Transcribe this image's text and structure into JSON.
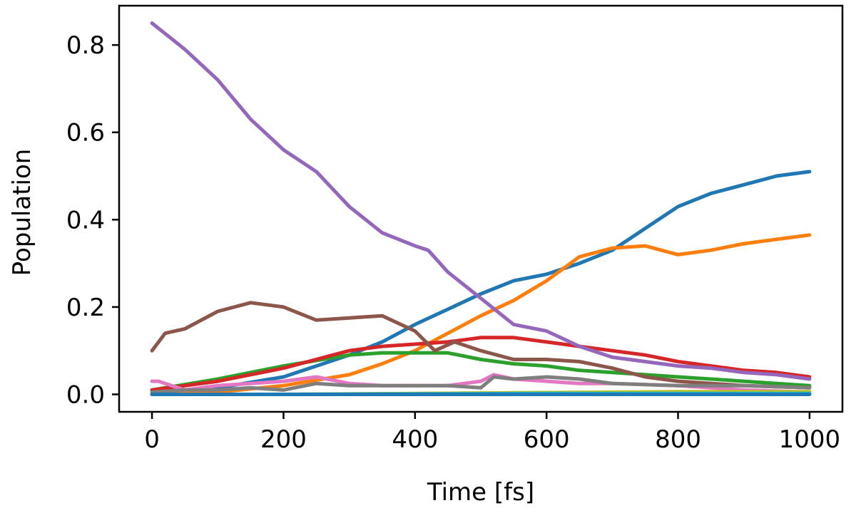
{
  "chart_data": {
    "type": "line",
    "title": "",
    "xlabel": "Time [fs]",
    "ylabel": "Population",
    "xlim": [
      -50,
      1050
    ],
    "ylim": [
      -0.04,
      0.89
    ],
    "xticks": [
      0,
      200,
      400,
      600,
      800,
      1000
    ],
    "xtick_labels": [
      "0",
      "200",
      "400",
      "600",
      "800",
      "1000"
    ],
    "yticks": [
      0.0,
      0.2,
      0.4,
      0.6,
      0.8
    ],
    "ytick_labels": [
      "0.0",
      "0.2",
      "0.4",
      "0.6",
      "0.8"
    ],
    "grid": false,
    "legend": "none",
    "series": [
      {
        "color": "#1f77b4",
        "x": [
          0,
          100,
          200,
          300,
          350,
          400,
          450,
          500,
          550,
          600,
          650,
          700,
          750,
          800,
          850,
          900,
          950,
          1000
        ],
        "y": [
          0.005,
          0.015,
          0.04,
          0.09,
          0.12,
          0.16,
          0.195,
          0.23,
          0.26,
          0.275,
          0.3,
          0.33,
          0.38,
          0.43,
          0.46,
          0.48,
          0.5,
          0.51
        ]
      },
      {
        "color": "#ff7f0e",
        "x": [
          0,
          100,
          200,
          300,
          350,
          400,
          450,
          500,
          550,
          600,
          650,
          700,
          750,
          800,
          850,
          900,
          950,
          1000
        ],
        "y": [
          0.0,
          0.005,
          0.02,
          0.045,
          0.07,
          0.1,
          0.14,
          0.18,
          0.215,
          0.26,
          0.315,
          0.335,
          0.34,
          0.32,
          0.33,
          0.345,
          0.355,
          0.365
        ]
      },
      {
        "color": "#2ca02c",
        "x": [
          0,
          100,
          200,
          300,
          350,
          400,
          450,
          500,
          550,
          600,
          650,
          700,
          750,
          800,
          850,
          900,
          950,
          1000
        ],
        "y": [
          0.01,
          0.035,
          0.065,
          0.09,
          0.095,
          0.095,
          0.095,
          0.08,
          0.07,
          0.065,
          0.055,
          0.05,
          0.045,
          0.04,
          0.035,
          0.03,
          0.025,
          0.02
        ]
      },
      {
        "color": "#d62728",
        "x": [
          0,
          100,
          200,
          300,
          350,
          400,
          450,
          500,
          550,
          600,
          650,
          700,
          750,
          800,
          850,
          900,
          950,
          1000
        ],
        "y": [
          0.01,
          0.03,
          0.06,
          0.1,
          0.11,
          0.115,
          0.12,
          0.13,
          0.13,
          0.12,
          0.11,
          0.1,
          0.09,
          0.075,
          0.065,
          0.055,
          0.05,
          0.04
        ]
      },
      {
        "color": "#9467bd",
        "x": [
          0,
          50,
          100,
          150,
          200,
          250,
          300,
          350,
          400,
          420,
          450,
          500,
          550,
          600,
          650,
          700,
          750,
          800,
          850,
          900,
          950,
          1000
        ],
        "y": [
          0.85,
          0.79,
          0.72,
          0.63,
          0.56,
          0.51,
          0.43,
          0.37,
          0.34,
          0.33,
          0.28,
          0.22,
          0.16,
          0.145,
          0.11,
          0.085,
          0.075,
          0.065,
          0.06,
          0.05,
          0.045,
          0.035
        ]
      },
      {
        "color": "#8c564b",
        "x": [
          0,
          20,
          50,
          100,
          150,
          200,
          250,
          300,
          350,
          400,
          430,
          460,
          500,
          550,
          600,
          650,
          700,
          750,
          800,
          900,
          1000
        ],
        "y": [
          0.1,
          0.14,
          0.15,
          0.19,
          0.21,
          0.2,
          0.17,
          0.175,
          0.18,
          0.145,
          0.1,
          0.12,
          0.1,
          0.08,
          0.08,
          0.075,
          0.06,
          0.04,
          0.03,
          0.02,
          0.015
        ]
      },
      {
        "color": "#e377c2",
        "x": [
          0,
          10,
          50,
          100,
          150,
          200,
          250,
          300,
          350,
          400,
          450,
          500,
          520,
          550,
          600,
          650,
          700,
          800,
          900,
          1000
        ],
        "y": [
          0.03,
          0.03,
          0.01,
          0.02,
          0.025,
          0.03,
          0.04,
          0.025,
          0.02,
          0.02,
          0.02,
          0.03,
          0.045,
          0.035,
          0.03,
          0.025,
          0.025,
          0.02,
          0.01,
          0.005
        ]
      },
      {
        "color": "#7f7f7f",
        "x": [
          0,
          50,
          100,
          150,
          200,
          250,
          300,
          350,
          400,
          450,
          500,
          520,
          550,
          600,
          650,
          700,
          800,
          900,
          1000
        ],
        "y": [
          0.005,
          0.01,
          0.01,
          0.015,
          0.01,
          0.025,
          0.02,
          0.02,
          0.02,
          0.02,
          0.015,
          0.04,
          0.035,
          0.04,
          0.035,
          0.025,
          0.02,
          0.02,
          0.015
        ]
      },
      {
        "color": "#bcbd22",
        "x": [
          0,
          200,
          400,
          600,
          800,
          1000
        ],
        "y": [
          0.0,
          0.0,
          0.002,
          0.004,
          0.006,
          0.006
        ]
      },
      {
        "color": "#17becf",
        "x": [
          0,
          200,
          400,
          600,
          800,
          1000
        ],
        "y": [
          0.0,
          0.0,
          0.001,
          0.002,
          0.002,
          0.002
        ]
      },
      {
        "color": "#1f77b4",
        "x": [
          0,
          200,
          400,
          600,
          800,
          1000
        ],
        "y": [
          0.0,
          0.0,
          0.0,
          0.0,
          0.0,
          0.0
        ]
      }
    ]
  }
}
